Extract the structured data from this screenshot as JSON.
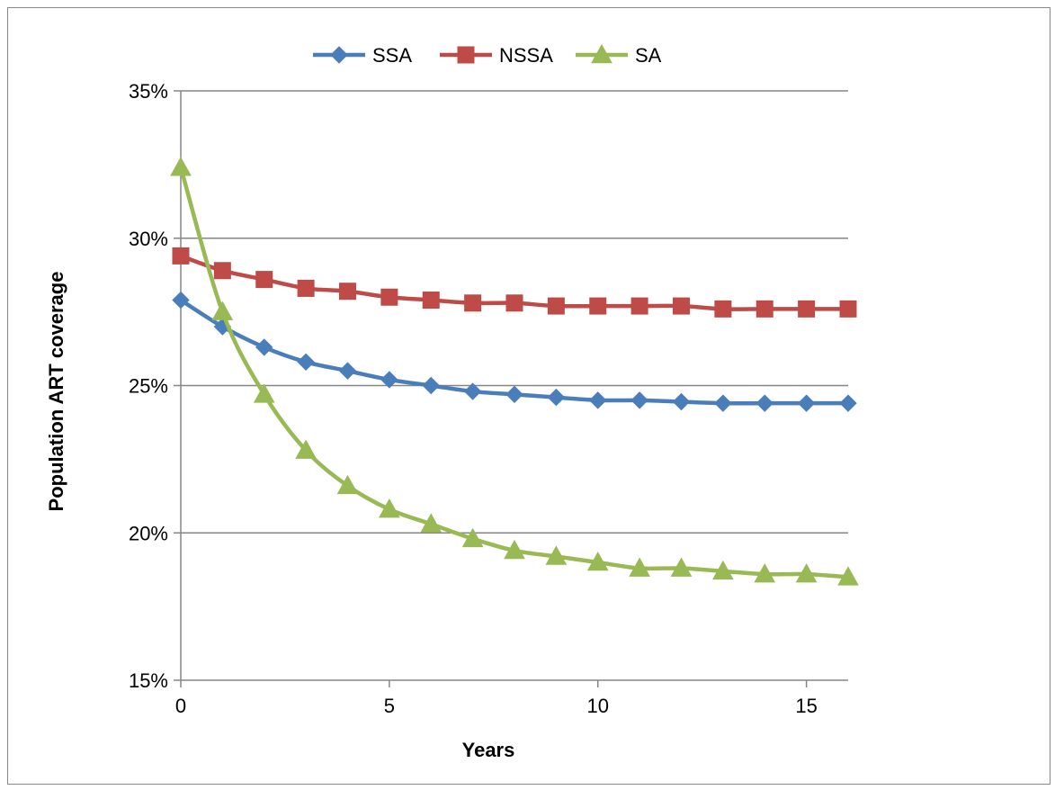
{
  "chart_data": {
    "type": "line",
    "title": "",
    "xlabel": "Years",
    "ylabel": "Population ART coverage",
    "x": [
      0,
      1,
      2,
      3,
      4,
      5,
      6,
      7,
      8,
      9,
      10,
      11,
      12,
      13,
      14,
      15,
      16
    ],
    "xlim": [
      0,
      16
    ],
    "x_ticks": [
      0,
      5,
      10,
      15
    ],
    "x_tick_labels": [
      "0",
      "5",
      "10",
      "15"
    ],
    "ylim": [
      0.15,
      0.35
    ],
    "y_ticks": [
      0.15,
      0.2,
      0.25,
      0.3,
      0.35
    ],
    "y_tick_labels": [
      "15%",
      "20%",
      "25%",
      "30%",
      "35%"
    ],
    "grid": "horizontal",
    "legend_position": "top",
    "series": [
      {
        "name": "SSA",
        "color": "#4a7ebb",
        "marker": "diamond",
        "values": [
          0.279,
          0.27,
          0.263,
          0.258,
          0.255,
          0.252,
          0.25,
          0.248,
          0.247,
          0.246,
          0.245,
          0.245,
          0.2445,
          0.244,
          0.244,
          0.244,
          0.244
        ]
      },
      {
        "name": "NSSA",
        "color": "#be4b48",
        "marker": "square",
        "values": [
          0.294,
          0.289,
          0.286,
          0.283,
          0.282,
          0.28,
          0.279,
          0.278,
          0.278,
          0.277,
          0.277,
          0.277,
          0.277,
          0.276,
          0.276,
          0.276,
          0.276
        ]
      },
      {
        "name": "SA",
        "color": "#98b954",
        "marker": "triangle",
        "values": [
          0.324,
          0.275,
          0.247,
          0.228,
          0.216,
          0.208,
          0.203,
          0.198,
          0.194,
          0.192,
          0.19,
          0.188,
          0.188,
          0.187,
          0.186,
          0.186,
          0.185
        ]
      }
    ]
  }
}
